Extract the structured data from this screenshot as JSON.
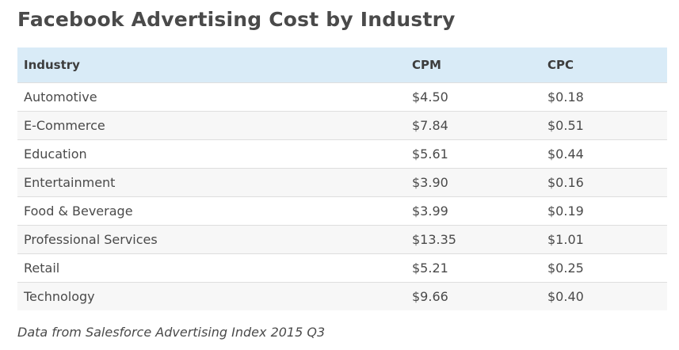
{
  "header": {
    "title": "Facebook Advertising Cost by Industry"
  },
  "table": {
    "columns": [
      "Industry",
      "CPM",
      "CPC"
    ],
    "rows": [
      [
        "Automotive",
        "$4.50",
        "$0.18"
      ],
      [
        "E-Commerce",
        "$7.84",
        "$0.51"
      ],
      [
        "Education",
        "$5.61",
        "$0.44"
      ],
      [
        "Entertainment",
        "$3.90",
        "$0.16"
      ],
      [
        "Food & Beverage",
        "$3.99",
        "$0.19"
      ],
      [
        "Professional Services",
        "$13.35",
        "$1.01"
      ],
      [
        "Retail",
        "$5.21",
        "$0.25"
      ],
      [
        "Technology",
        "$9.66",
        "$0.40"
      ]
    ]
  },
  "footer": {
    "note": "Data from Salesforce Advertising Index 2015 Q3"
  }
}
